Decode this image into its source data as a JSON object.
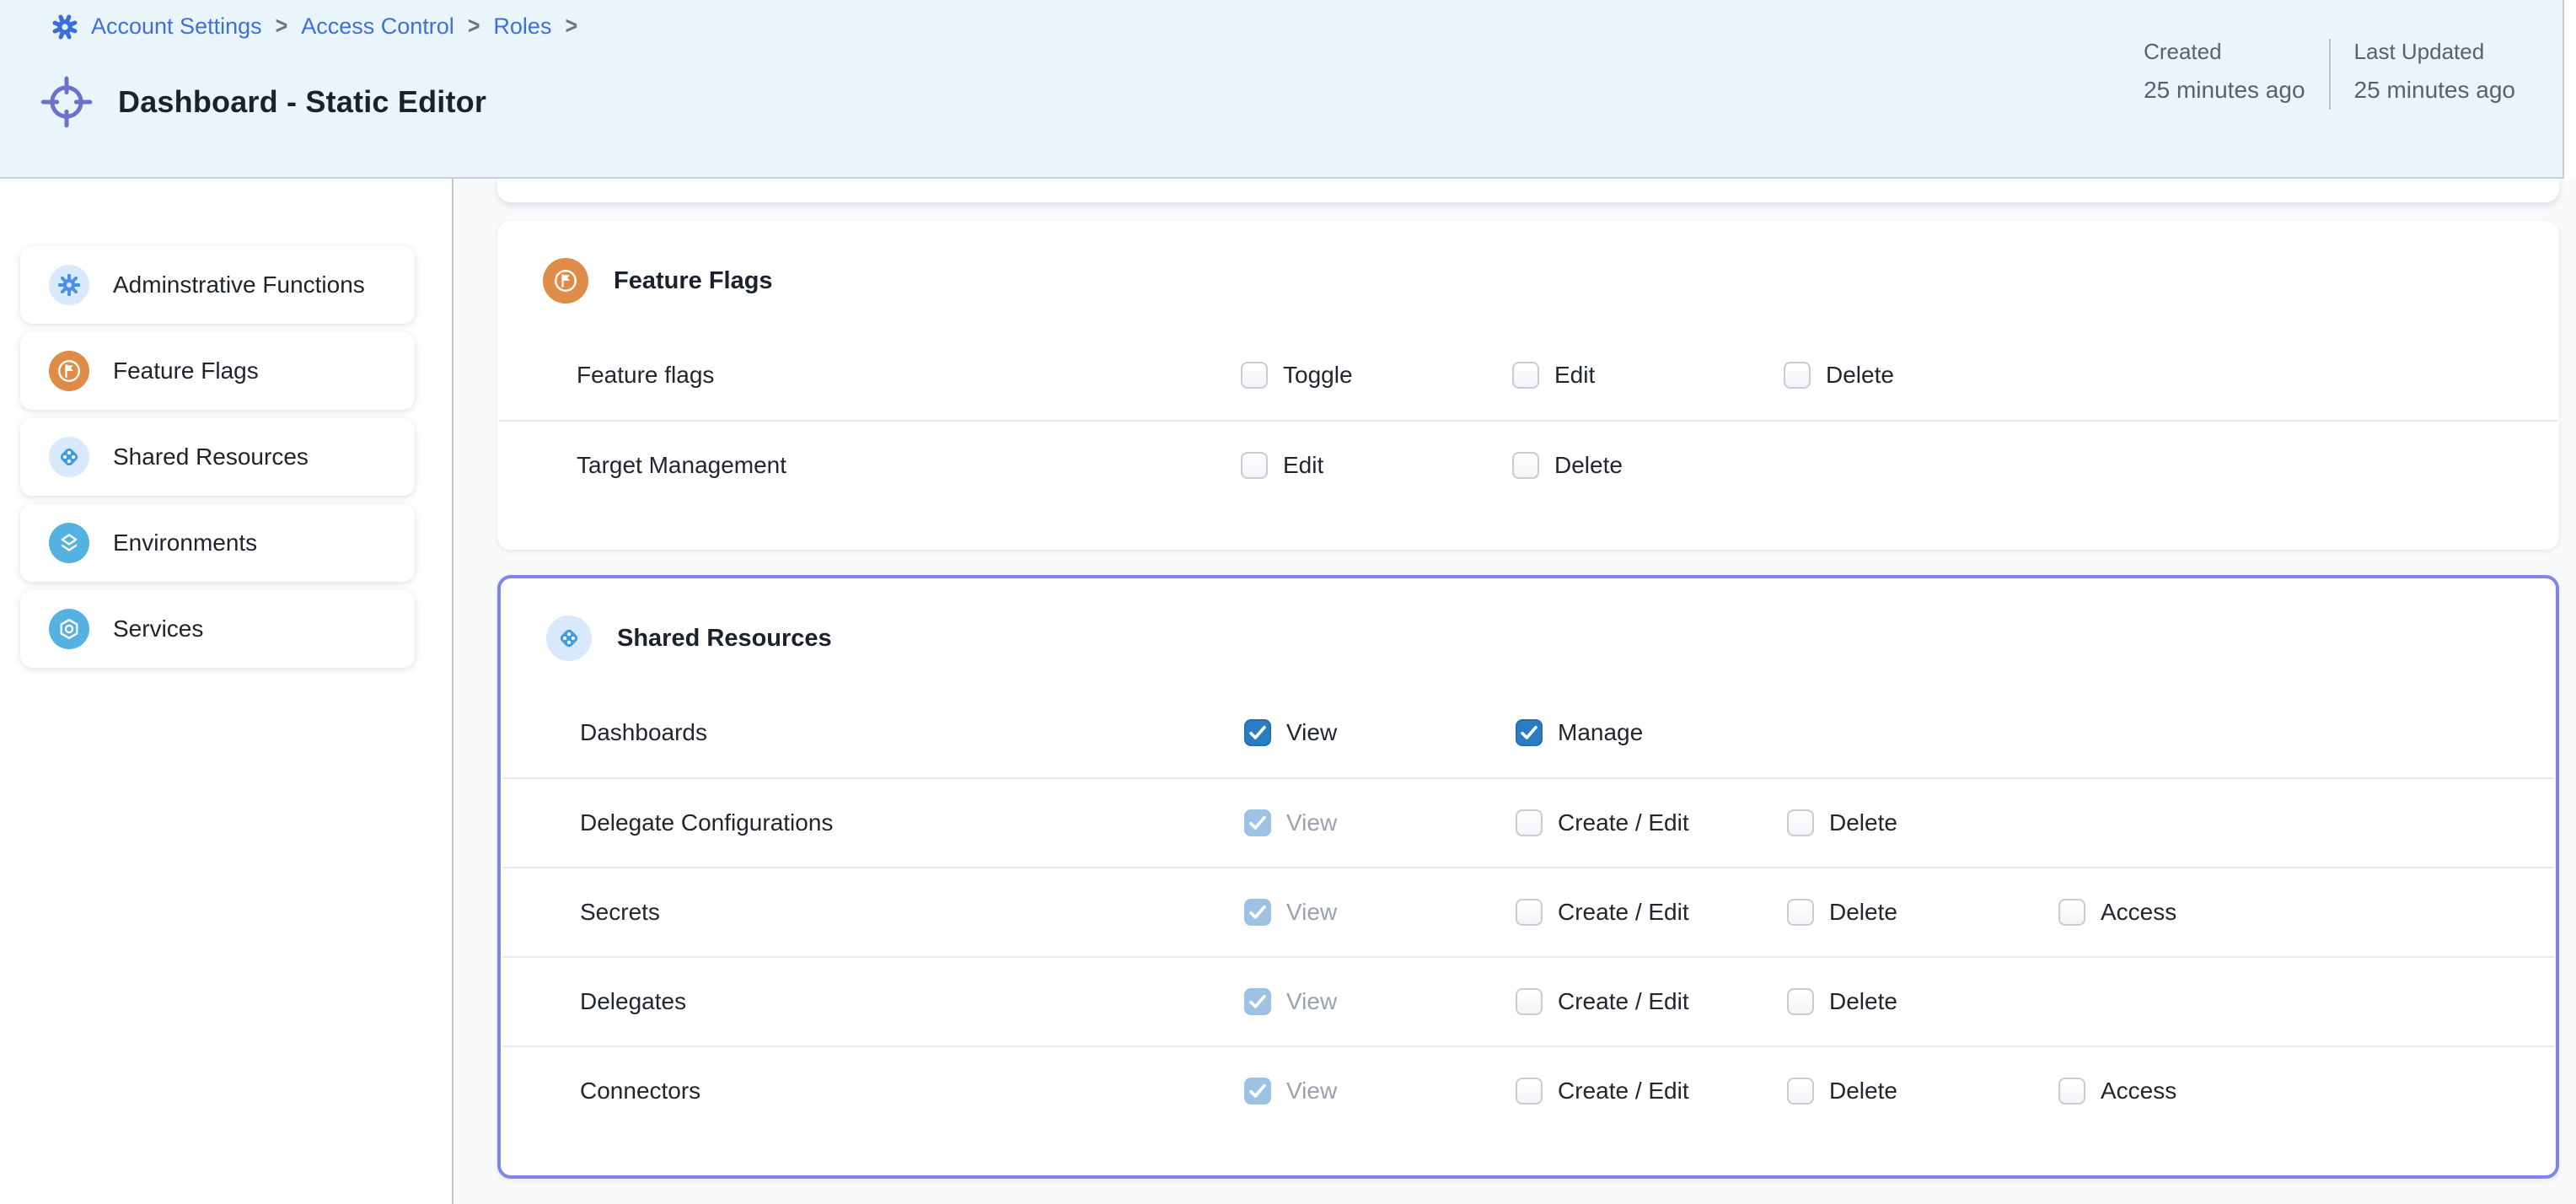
{
  "breadcrumb": {
    "items": [
      "Account Settings",
      "Access Control",
      "Roles"
    ],
    "separator": ">",
    "trailing_separator": true
  },
  "header": {
    "title": "Dashboard - Static Editor",
    "title_icon": "crosshair-icon",
    "meta": [
      {
        "label": "Created",
        "value": "25 minutes ago"
      },
      {
        "label": "Last Updated",
        "value": "25 minutes ago"
      }
    ]
  },
  "sidebar": {
    "items": [
      {
        "label": "Adminstrative Functions",
        "icon": "gear-icon",
        "icon_bg": "#d7e9fa",
        "icon_fg": "#4a90e2"
      },
      {
        "label": "Feature Flags",
        "icon": "flag-icon",
        "icon_bg": "#de8c47",
        "icon_fg": "#ffffff"
      },
      {
        "label": "Shared Resources",
        "icon": "shared-resources-icon",
        "icon_bg": "#d7e9fa",
        "icon_fg": "#3f9ce2"
      },
      {
        "label": "Environments",
        "icon": "environments-icon",
        "icon_bg": "#55b1e2",
        "icon_fg": "#ffffff"
      },
      {
        "label": "Services",
        "icon": "services-icon",
        "icon_bg": "#55b1e2",
        "icon_fg": "#ffffff"
      }
    ]
  },
  "sections": [
    {
      "title": "Feature Flags",
      "icon": "flag-icon",
      "icon_bg": "#de8c47",
      "icon_fg": "#ffffff",
      "highlighted": false,
      "rows": [
        {
          "resource": "Feature flags",
          "permissions": [
            {
              "label": "Toggle",
              "checked": false,
              "disabled": false
            },
            {
              "label": "Edit",
              "checked": false,
              "disabled": false
            },
            {
              "label": "Delete",
              "checked": false,
              "disabled": false
            }
          ]
        },
        {
          "resource": "Target Management",
          "permissions": [
            {
              "label": "Edit",
              "checked": false,
              "disabled": false
            },
            {
              "label": "Delete",
              "checked": false,
              "disabled": false
            }
          ]
        }
      ]
    },
    {
      "title": "Shared Resources",
      "icon": "shared-resources-icon",
      "icon_bg": "#d7e9fa",
      "icon_fg": "#3f9ce2",
      "highlighted": true,
      "rows": [
        {
          "resource": "Dashboards",
          "permissions": [
            {
              "label": "View",
              "checked": true,
              "disabled": false
            },
            {
              "label": "Manage",
              "checked": true,
              "disabled": false
            }
          ]
        },
        {
          "resource": "Delegate Configurations",
          "permissions": [
            {
              "label": "View",
              "checked": true,
              "disabled": true
            },
            {
              "label": "Create / Edit",
              "checked": false,
              "disabled": false
            },
            {
              "label": "Delete",
              "checked": false,
              "disabled": false
            }
          ]
        },
        {
          "resource": "Secrets",
          "permissions": [
            {
              "label": "View",
              "checked": true,
              "disabled": true
            },
            {
              "label": "Create / Edit",
              "checked": false,
              "disabled": false
            },
            {
              "label": "Delete",
              "checked": false,
              "disabled": false
            },
            {
              "label": "Access",
              "checked": false,
              "disabled": false
            }
          ]
        },
        {
          "resource": "Delegates",
          "permissions": [
            {
              "label": "View",
              "checked": true,
              "disabled": true
            },
            {
              "label": "Create / Edit",
              "checked": false,
              "disabled": false
            },
            {
              "label": "Delete",
              "checked": false,
              "disabled": false
            }
          ]
        },
        {
          "resource": "Connectors",
          "permissions": [
            {
              "label": "View",
              "checked": true,
              "disabled": true
            },
            {
              "label": "Create / Edit",
              "checked": false,
              "disabled": false
            },
            {
              "label": "Delete",
              "checked": false,
              "disabled": false
            },
            {
              "label": "Access",
              "checked": false,
              "disabled": false
            }
          ]
        }
      ]
    }
  ],
  "colors": {
    "header_bg": "#e9f5fb",
    "breadcrumb_blue": "#3b70dd",
    "title_icon_purple": "#6c71cc",
    "highlight_border": "#7f86e9",
    "checkbox_checked": "#2a7dc1",
    "checkbox_checked_disabled": "#9dc2e3",
    "badge_orange": "#de8c47",
    "badge_light_blue": "#d7e9fa",
    "badge_sky_blue": "#55b1e2",
    "muted_text": "#9ba1af"
  }
}
